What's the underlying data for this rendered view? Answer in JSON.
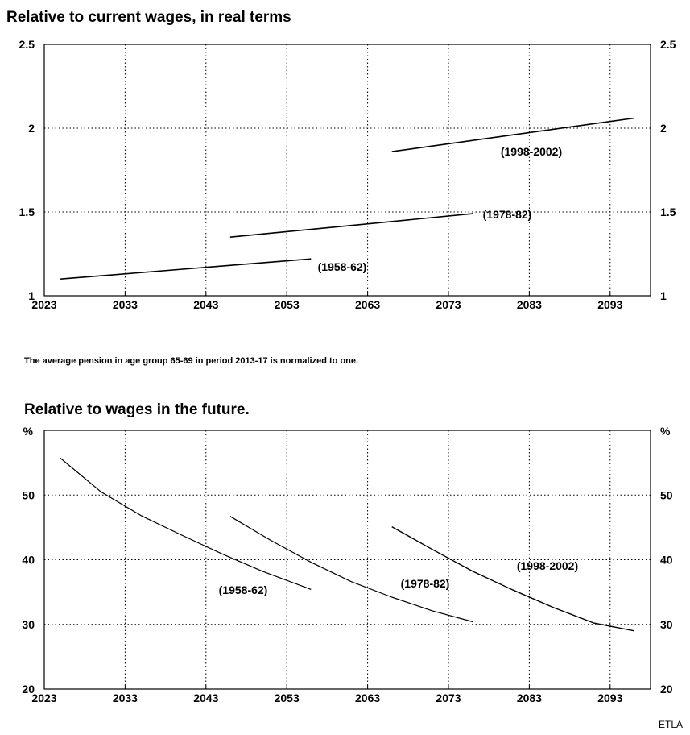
{
  "note": "The average pension in age group 65-69 in period 2013-17 is normalized to one.",
  "credit": "ETLA",
  "chart_data": [
    {
      "type": "line",
      "title": "Relative to current wages, in real terms",
      "xlim": [
        2023,
        2098
      ],
      "x_ticks": [
        "2023",
        "2033",
        "2043",
        "2053",
        "2063",
        "2073",
        "2083",
        "2093"
      ],
      "ylim": [
        1,
        2.5
      ],
      "y_ticks": [
        "1",
        "1.5",
        "2",
        "2.5"
      ],
      "y_unit": "",
      "grid": "dotted",
      "series": [
        {
          "name": "(1958-62)",
          "x": [
            2025,
            2056
          ],
          "y": [
            1.1,
            1.22
          ]
        },
        {
          "name": "(1978-82)",
          "x": [
            2046,
            2076
          ],
          "y": [
            1.35,
            1.49
          ]
        },
        {
          "name": "(1998-2002)",
          "x": [
            2066,
            2096
          ],
          "y": [
            1.86,
            2.06
          ]
        }
      ]
    },
    {
      "type": "line",
      "title": "Relative to wages in the future.",
      "xlim": [
        2023,
        2098
      ],
      "x_ticks": [
        "2023",
        "2033",
        "2043",
        "2053",
        "2063",
        "2073",
        "2083",
        "2093"
      ],
      "ylim": [
        20,
        60
      ],
      "y_ticks": [
        "20",
        "30",
        "40",
        "50"
      ],
      "y_unit": "%",
      "grid": "dotted",
      "series": [
        {
          "name": "(1958-62)",
          "x": [
            2025,
            2030,
            2035,
            2040,
            2045,
            2050,
            2056
          ],
          "y": [
            55.7,
            50.5,
            46.8,
            43.8,
            40.9,
            38.2,
            35.4
          ]
        },
        {
          "name": "(1978-82)",
          "x": [
            2046,
            2051,
            2056,
            2061,
            2066,
            2071,
            2076
          ],
          "y": [
            46.7,
            43.0,
            39.6,
            36.6,
            34.2,
            32.1,
            30.4
          ]
        },
        {
          "name": "(1998-2002)",
          "x": [
            2066,
            2071,
            2076,
            2081,
            2086,
            2091,
            2096
          ],
          "y": [
            45.1,
            41.6,
            38.2,
            35.3,
            32.6,
            30.2,
            29.0
          ]
        }
      ]
    }
  ]
}
